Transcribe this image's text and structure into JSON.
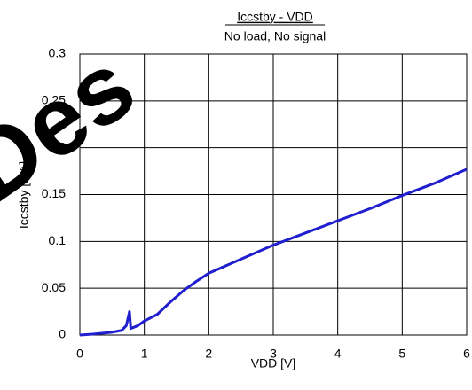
{
  "chart_data": {
    "type": "line",
    "title": "Iccstby - VDD",
    "subtitle": "No load, No signal",
    "watermark": "Des",
    "xlabel": "VDD [V]",
    "ylabel": "Iccstby [mA]",
    "x": [
      0,
      0.2,
      0.5,
      0.65,
      0.72,
      0.77,
      0.79,
      0.9,
      1.0,
      1.2,
      1.4,
      1.6,
      1.8,
      2.0,
      2.5,
      3.0,
      3.5,
      4.0,
      4.5,
      5.0,
      5.5,
      6.0
    ],
    "series": [
      {
        "name": "Iccstby",
        "color": "#1f1fd0",
        "values": [
          0,
          0.001,
          0.003,
          0.005,
          0.01,
          0.025,
          0.007,
          0.01,
          0.015,
          0.022,
          0.035,
          0.047,
          0.057,
          0.066,
          0.081,
          0.096,
          0.109,
          0.122,
          0.135,
          0.149,
          0.162,
          0.177
        ]
      }
    ],
    "xlim": [
      0,
      6
    ],
    "xticks": [
      0,
      1,
      2,
      3,
      4,
      5,
      6
    ],
    "ylim": [
      0,
      0.3
    ],
    "yticks": [
      0,
      0.05,
      0.1,
      0.15,
      0.2,
      0.25,
      0.3
    ],
    "grid": true
  }
}
